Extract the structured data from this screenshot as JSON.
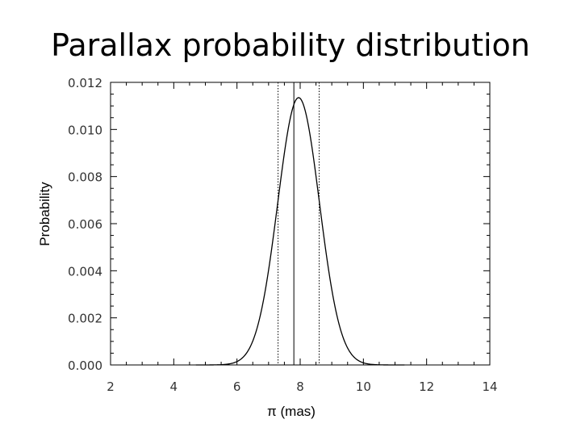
{
  "chart_data": {
    "type": "line",
    "title": "Parallax probability distribution",
    "xlabel": "π (mas)",
    "ylabel": "Probability",
    "xlim": [
      2,
      14
    ],
    "ylim": [
      0,
      0.012
    ],
    "xticks": [
      2,
      4,
      6,
      8,
      10,
      12,
      14
    ],
    "yticks": [
      "0.000",
      "0.002",
      "0.004",
      "0.006",
      "0.008",
      "0.010",
      "0.012"
    ],
    "grid": false,
    "series": [
      {
        "curve": "gaussian",
        "mean": 7.95,
        "sigma": 0.66,
        "peak": 0.01135,
        "x_range": [
          4.7,
          11.3
        ]
      }
    ],
    "vlines": [
      {
        "x": 7.3,
        "style": "dotted"
      },
      {
        "x": 7.8,
        "style": "solid"
      },
      {
        "x": 8.6,
        "style": "dotted"
      }
    ]
  }
}
